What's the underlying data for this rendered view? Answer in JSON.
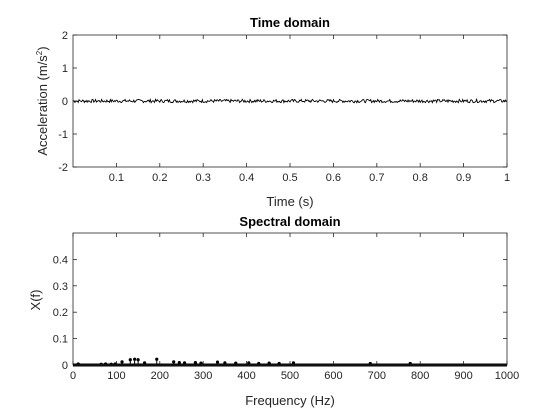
{
  "chart_data": [
    {
      "type": "line",
      "title": "Time domain",
      "xlabel": "Time (s)",
      "ylabel": "Acceleration (m/s",
      "ylabel_sup": "2",
      "ylabel_tail": ")",
      "xlim": [
        0,
        1
      ],
      "ylim": [
        -2,
        2
      ],
      "xticks": [
        "0.1",
        "0.2",
        "0.3",
        "0.4",
        "0.5",
        "0.6",
        "0.7",
        "0.8",
        "0.9",
        "1"
      ],
      "yticks": [
        "2",
        "1",
        "0",
        "-1",
        "-2"
      ],
      "grid": false,
      "series": [
        {
          "description": "low-amplitude noise signal around 0",
          "amplitude": 0.05,
          "n_points": 500,
          "color": "#000000"
        }
      ]
    },
    {
      "type": "stem",
      "title": "Spectral domain",
      "xlabel": "Frequency (Hz)",
      "ylabel": "X(f)",
      "xlim": [
        0,
        1000
      ],
      "ylim": [
        0,
        0.5
      ],
      "xticks": [
        "0",
        "100",
        "200",
        "300",
        "400",
        "500",
        "600",
        "700",
        "800",
        "900",
        "1000"
      ],
      "yticks": [
        "0.4",
        "0.3",
        "0.2",
        "0.1",
        "0"
      ],
      "grid": false,
      "series": [
        {
          "color": "#000000",
          "frequencies": [
            12,
            65,
            75,
            88,
            97,
            113,
            132,
            142,
            150,
            165,
            193,
            232,
            245,
            257,
            282,
            295,
            333,
            350,
            375,
            405,
            428,
            452,
            475,
            508,
            685,
            777
          ],
          "values": [
            0.004,
            0.003,
            0.004,
            0.003,
            0.004,
            0.012,
            0.02,
            0.022,
            0.02,
            0.008,
            0.022,
            0.012,
            0.009,
            0.008,
            0.009,
            0.007,
            0.011,
            0.008,
            0.007,
            0.008,
            0.006,
            0.007,
            0.006,
            0.008,
            0.006,
            0.006
          ]
        }
      ]
    }
  ]
}
